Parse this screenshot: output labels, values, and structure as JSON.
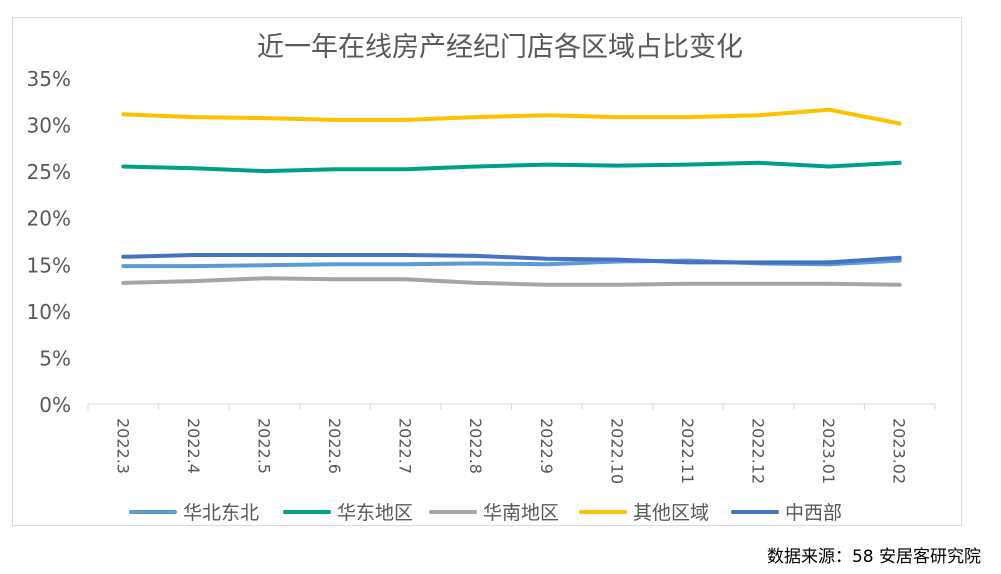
{
  "chart_data": {
    "type": "line",
    "title": "近一年在线房产经纪门店各区域占比变化",
    "xlabel": "",
    "ylabel": "",
    "ylim": [
      0,
      35
    ],
    "yticks": [
      "0%",
      "5%",
      "10%",
      "15%",
      "20%",
      "25%",
      "30%",
      "35%"
    ],
    "ytick_values": [
      0,
      5,
      10,
      15,
      20,
      25,
      30,
      35
    ],
    "categories": [
      "2022.3",
      "2022.4",
      "2022.5",
      "2022.6",
      "2022.7",
      "2022.8",
      "2022.9",
      "2022.10",
      "2022.11",
      "2022.12",
      "2023.01",
      "2023.02"
    ],
    "legend_position": "bottom",
    "grid": false,
    "series": [
      {
        "name": "华北东北",
        "color": "#5b9bd5",
        "values": [
          14.8,
          14.8,
          14.9,
          15.0,
          15.0,
          15.1,
          15.0,
          15.3,
          15.4,
          15.1,
          15.0,
          15.4
        ]
      },
      {
        "name": "华东地区",
        "color": "#00a087",
        "values": [
          25.5,
          25.3,
          25.0,
          25.2,
          25.2,
          25.5,
          25.7,
          25.6,
          25.7,
          25.9,
          25.5,
          25.9
        ]
      },
      {
        "name": "华南地区",
        "color": "#a5a5a5",
        "values": [
          13.0,
          13.2,
          13.5,
          13.4,
          13.4,
          13.0,
          12.8,
          12.8,
          12.9,
          12.9,
          12.9,
          12.8
        ]
      },
      {
        "name": "其他区域",
        "color": "#ffc000",
        "values": [
          31.1,
          30.8,
          30.7,
          30.5,
          30.5,
          30.8,
          31.0,
          30.8,
          30.8,
          31.0,
          31.6,
          30.1
        ]
      },
      {
        "name": "中西部",
        "color": "#4472c4",
        "values": [
          15.8,
          16.0,
          16.0,
          16.0,
          16.0,
          15.9,
          15.6,
          15.5,
          15.2,
          15.2,
          15.2,
          15.7
        ]
      }
    ]
  },
  "source": "数据来源：58 安居客研究院"
}
